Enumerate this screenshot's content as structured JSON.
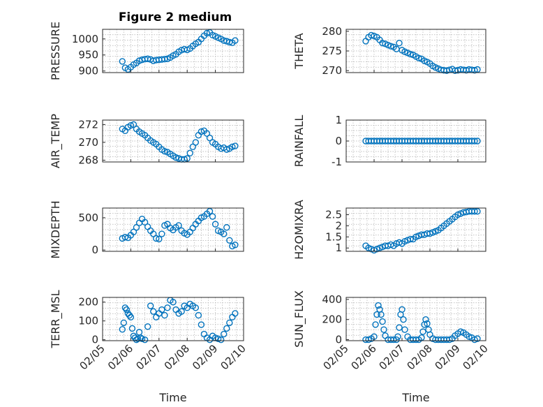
{
  "figure": {
    "title": "Figure 2 medium",
    "marker_color": "#0072BD"
  },
  "chart_data": [
    {
      "type": "scatter",
      "name": "pressure",
      "title": "Figure 2 medium",
      "ylabel": "PRESSURE",
      "xlabel": "",
      "ylim": [
        895,
        1030
      ],
      "yticks": [
        900,
        950,
        1000
      ],
      "x": [
        5.7,
        5.8,
        5.9,
        6.0,
        6.1,
        6.2,
        6.3,
        6.4,
        6.5,
        6.6,
        6.7,
        6.8,
        6.9,
        7.0,
        7.1,
        7.2,
        7.3,
        7.4,
        7.5,
        7.6,
        7.7,
        7.8,
        7.9,
        8.0,
        8.1,
        8.2,
        8.3,
        8.4,
        8.5,
        8.6,
        8.7,
        8.8,
        8.9,
        9.0,
        9.1,
        9.2,
        9.3,
        9.4,
        9.5,
        9.6,
        9.7
      ],
      "y": [
        930,
        910,
        905,
        912,
        920,
        925,
        932,
        935,
        937,
        938,
        936,
        932,
        934,
        935,
        936,
        937,
        938,
        942,
        948,
        952,
        960,
        965,
        968,
        966,
        970,
        978,
        985,
        990,
        1000,
        1010,
        1018,
        1020,
        1012,
        1008,
        1004,
        1000,
        995,
        993,
        990,
        988,
        995
      ]
    },
    {
      "type": "scatter",
      "name": "theta",
      "title": "",
      "ylabel": "THETA",
      "xlabel": "",
      "ylim": [
        269.5,
        280.5
      ],
      "yticks": [
        270,
        275,
        280
      ],
      "x": [
        5.7,
        5.8,
        5.9,
        6.0,
        6.1,
        6.2,
        6.3,
        6.4,
        6.5,
        6.6,
        6.7,
        6.8,
        6.9,
        7.0,
        7.1,
        7.2,
        7.3,
        7.4,
        7.5,
        7.6,
        7.7,
        7.8,
        7.9,
        8.0,
        8.1,
        8.2,
        8.3,
        8.4,
        8.5,
        8.6,
        8.7,
        8.8,
        8.9,
        9.0,
        9.1,
        9.2,
        9.3,
        9.4,
        9.5,
        9.6,
        9.7
      ],
      "y": [
        277.5,
        278.5,
        279,
        278.8,
        278.5,
        277.8,
        277,
        276.8,
        276.5,
        276.2,
        276,
        275.5,
        277,
        275.2,
        274.8,
        274.5,
        274.2,
        274,
        273.6,
        273.2,
        273,
        272.5,
        272.2,
        271.8,
        271.2,
        270.8,
        270.5,
        270.2,
        270.1,
        270,
        270.2,
        270.4,
        270,
        270.1,
        270.3,
        270.2,
        270.1,
        270.3,
        270.2,
        270.1,
        270.3
      ]
    },
    {
      "type": "scatter",
      "name": "air-temp",
      "title": "",
      "ylabel": "AIR_TEMP",
      "xlabel": "",
      "ylim": [
        267.8,
        272.5
      ],
      "yticks": [
        268,
        270,
        272
      ],
      "x": [
        5.7,
        5.8,
        5.9,
        6.0,
        6.1,
        6.2,
        6.3,
        6.4,
        6.5,
        6.6,
        6.7,
        6.8,
        6.9,
        7.0,
        7.1,
        7.2,
        7.3,
        7.4,
        7.5,
        7.6,
        7.7,
        7.8,
        7.9,
        8.0,
        8.1,
        8.2,
        8.3,
        8.4,
        8.5,
        8.6,
        8.7,
        8.8,
        8.9,
        9.0,
        9.1,
        9.2,
        9.3,
        9.4,
        9.5,
        9.6,
        9.7
      ],
      "y": [
        271.5,
        271.3,
        271.7,
        271.9,
        272,
        271.5,
        271.2,
        271,
        270.8,
        270.5,
        270.2,
        270,
        269.8,
        269.5,
        269.2,
        269,
        268.9,
        268.7,
        268.5,
        268.3,
        268.2,
        268.1,
        268.1,
        268.2,
        268.8,
        269.5,
        270,
        270.8,
        271.2,
        271.3,
        271,
        270.5,
        270,
        269.8,
        269.5,
        269.3,
        269.4,
        269.2,
        269.3,
        269.5,
        269.6
      ]
    },
    {
      "type": "scatter",
      "name": "rainfall",
      "title": "",
      "ylabel": "RAINFALL",
      "xlabel": "",
      "ylim": [
        -1,
        1
      ],
      "yticks": [
        -1,
        0,
        1
      ],
      "x": [
        5.7,
        5.8,
        5.9,
        6.0,
        6.1,
        6.2,
        6.3,
        6.4,
        6.5,
        6.6,
        6.7,
        6.8,
        6.9,
        7.0,
        7.1,
        7.2,
        7.3,
        7.4,
        7.5,
        7.6,
        7.7,
        7.8,
        7.9,
        8.0,
        8.1,
        8.2,
        8.3,
        8.4,
        8.5,
        8.6,
        8.7,
        8.8,
        8.9,
        9.0,
        9.1,
        9.2,
        9.3,
        9.4,
        9.5,
        9.6,
        9.7
      ],
      "y": [
        0,
        0,
        0,
        0,
        0,
        0,
        0,
        0,
        0,
        0,
        0,
        0,
        0,
        0,
        0,
        0,
        0,
        0,
        0,
        0,
        0,
        0,
        0,
        0,
        0,
        0,
        0,
        0,
        0,
        0,
        0,
        0,
        0,
        0,
        0,
        0,
        0,
        0,
        0,
        0,
        0
      ]
    },
    {
      "type": "scatter",
      "name": "mixdepth",
      "title": "",
      "ylabel": "MIXDEPTH",
      "xlabel": "",
      "ylim": [
        -20,
        650
      ],
      "yticks": [
        0,
        500
      ],
      "x": [
        5.7,
        5.8,
        5.9,
        6.0,
        6.1,
        6.2,
        6.3,
        6.4,
        6.5,
        6.6,
        6.7,
        6.8,
        6.9,
        7.0,
        7.1,
        7.2,
        7.3,
        7.4,
        7.5,
        7.6,
        7.7,
        7.8,
        7.9,
        8.0,
        8.1,
        8.2,
        8.3,
        8.4,
        8.5,
        8.6,
        8.7,
        8.8,
        8.9,
        9.0,
        9.1,
        9.2,
        9.3,
        9.4,
        9.5,
        9.6,
        9.7
      ],
      "y": [
        180,
        200,
        190,
        230,
        280,
        350,
        420,
        480,
        430,
        360,
        300,
        250,
        180,
        170,
        250,
        380,
        400,
        340,
        310,
        350,
        380,
        300,
        260,
        240,
        280,
        340,
        400,
        450,
        500,
        520,
        560,
        600,
        520,
        400,
        300,
        280,
        250,
        350,
        150,
        60,
        80
      ]
    },
    {
      "type": "scatter",
      "name": "h2omixra",
      "title": "",
      "ylabel": "H2OMIXRA",
      "xlabel": "",
      "ylim": [
        0.85,
        2.8
      ],
      "yticks": [
        1,
        1.5,
        2,
        2.5
      ],
      "x": [
        5.7,
        5.8,
        5.9,
        6.0,
        6.1,
        6.2,
        6.3,
        6.4,
        6.5,
        6.6,
        6.7,
        6.8,
        6.9,
        7.0,
        7.1,
        7.2,
        7.3,
        7.4,
        7.5,
        7.6,
        7.7,
        7.8,
        7.9,
        8.0,
        8.1,
        8.2,
        8.3,
        8.4,
        8.5,
        8.6,
        8.7,
        8.8,
        8.9,
        9.0,
        9.1,
        9.2,
        9.3,
        9.4,
        9.5,
        9.6,
        9.7
      ],
      "y": [
        1.1,
        1.0,
        0.95,
        0.9,
        0.95,
        1.0,
        1.05,
        1.1,
        1.1,
        1.15,
        1.1,
        1.2,
        1.25,
        1.2,
        1.3,
        1.35,
        1.4,
        1.4,
        1.5,
        1.55,
        1.6,
        1.6,
        1.65,
        1.65,
        1.7,
        1.75,
        1.8,
        1.9,
        2.0,
        2.1,
        2.2,
        2.3,
        2.4,
        2.5,
        2.55,
        2.6,
        2.62,
        2.65,
        2.65,
        2.65,
        2.65
      ]
    },
    {
      "type": "scatter",
      "name": "terr-msl",
      "title": "",
      "ylabel": "TERR_MSL",
      "xlabel": "Time",
      "ylim": [
        -5,
        225
      ],
      "yticks": [
        0,
        100,
        200
      ],
      "xticklabels": [
        "02/05",
        "02/06",
        "02/07",
        "02/08",
        "02/09",
        "02/10"
      ],
      "x": [
        5.7,
        5.75,
        5.8,
        5.85,
        5.9,
        5.95,
        6.0,
        6.05,
        6.1,
        6.15,
        6.2,
        6.25,
        6.3,
        6.35,
        6.4,
        6.5,
        6.6,
        6.7,
        6.8,
        6.9,
        7.0,
        7.1,
        7.2,
        7.3,
        7.4,
        7.5,
        7.6,
        7.7,
        7.8,
        7.9,
        8.0,
        8.1,
        8.2,
        8.3,
        8.4,
        8.5,
        8.6,
        8.7,
        8.8,
        8.9,
        9.0,
        9.1,
        9.2,
        9.3,
        9.4,
        9.5,
        9.6,
        9.7
      ],
      "y": [
        55,
        90,
        170,
        160,
        140,
        130,
        120,
        60,
        20,
        10,
        0,
        5,
        40,
        10,
        5,
        0,
        70,
        180,
        150,
        120,
        140,
        160,
        130,
        170,
        210,
        200,
        160,
        140,
        150,
        180,
        170,
        190,
        180,
        170,
        130,
        80,
        30,
        10,
        0,
        20,
        10,
        5,
        0,
        30,
        60,
        90,
        120,
        140
      ]
    },
    {
      "type": "scatter",
      "name": "sun-flux",
      "title": "",
      "ylabel": "SUN_FLUX",
      "xlabel": "Time",
      "ylim": [
        -10,
        420
      ],
      "yticks": [
        0,
        200,
        400
      ],
      "xticklabels": [
        "02/05",
        "02/06",
        "02/07",
        "02/08",
        "02/09",
        "02/10"
      ],
      "x": [
        5.7,
        5.8,
        5.9,
        6.0,
        6.05,
        6.1,
        6.15,
        6.2,
        6.25,
        6.3,
        6.35,
        6.4,
        6.5,
        6.6,
        6.7,
        6.8,
        6.85,
        6.9,
        6.95,
        7.0,
        7.05,
        7.1,
        7.2,
        7.3,
        7.4,
        7.5,
        7.6,
        7.7,
        7.75,
        7.8,
        7.85,
        7.9,
        7.95,
        8.0,
        8.1,
        8.2,
        8.3,
        8.4,
        8.5,
        8.6,
        8.7,
        8.8,
        8.9,
        9.0,
        9.1,
        9.2,
        9.3,
        9.4,
        9.5,
        9.6,
        9.7
      ],
      "y": [
        0,
        0,
        10,
        30,
        150,
        250,
        340,
        300,
        250,
        180,
        100,
        40,
        0,
        0,
        0,
        0,
        30,
        120,
        250,
        300,
        200,
        100,
        30,
        0,
        0,
        0,
        0,
        20,
        80,
        150,
        200,
        160,
        100,
        50,
        10,
        0,
        0,
        0,
        0,
        0,
        0,
        10,
        40,
        60,
        80,
        70,
        50,
        30,
        20,
        0,
        10
      ]
    }
  ]
}
